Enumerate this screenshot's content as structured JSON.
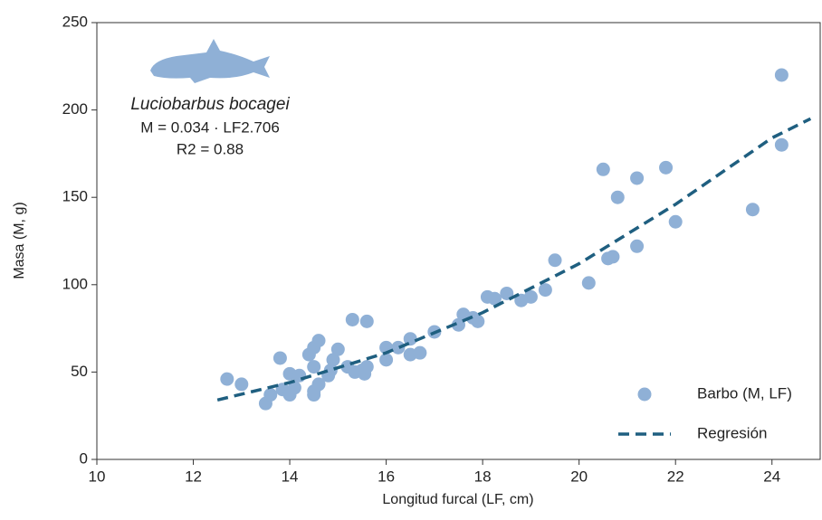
{
  "chart_data": {
    "type": "scatter",
    "x_label": "Longitud furcal (LF, cm)",
    "y_label": "Masa (M, g)",
    "annotations": [
      "Luciobarbus bocagei",
      "M = 0.034 · LF2.706",
      "R2 = 0.88"
    ],
    "xlim": [
      10,
      25
    ],
    "xticks": [
      10,
      12,
      14,
      16,
      18,
      20,
      22,
      24
    ],
    "ylim": [
      0,
      250
    ],
    "yticks": [
      0,
      50,
      100,
      150,
      200,
      250
    ],
    "grid": false,
    "legend": "lower right",
    "series": [
      {
        "name": "Barbo (M, LF)",
        "type": "scatter",
        "color": "#8fb0d6",
        "x": [
          12.7,
          13.0,
          13.5,
          13.6,
          13.8,
          13.85,
          14.0,
          14.0,
          14.1,
          14.2,
          14.4,
          14.5,
          14.5,
          14.5,
          14.5,
          14.6,
          14.6,
          14.8,
          14.85,
          14.9,
          15.0,
          15.2,
          15.3,
          15.35,
          15.5,
          15.55,
          15.6,
          15.6,
          16.0,
          16.0,
          16.25,
          16.5,
          16.5,
          16.7,
          17.0,
          17.5,
          17.6,
          17.8,
          17.9,
          18.1,
          18.25,
          18.5,
          18.8,
          19.0,
          19.3,
          19.5,
          20.2,
          20.5,
          20.6,
          20.7,
          20.8,
          21.2,
          21.2,
          21.8,
          22.0,
          23.6,
          24.2,
          24.2
        ],
        "values": [
          46,
          43,
          32,
          37,
          58,
          40,
          49,
          37,
          41,
          48,
          60,
          64,
          53,
          37,
          39,
          68,
          43,
          48,
          51,
          57,
          63,
          53,
          80,
          50,
          51,
          49,
          79,
          53,
          64,
          57,
          64,
          69,
          60,
          61,
          73,
          77,
          83,
          81,
          79,
          93,
          92,
          95,
          91,
          93,
          97,
          114,
          101,
          166,
          115,
          116,
          150,
          161,
          122,
          167,
          136,
          143,
          220,
          180
        ]
      },
      {
        "name": "Regresión",
        "type": "line",
        "dashed": true,
        "color": "#1f5f80",
        "x": [
          12.5,
          14,
          16,
          18,
          20,
          22,
          24,
          24.8
        ],
        "values": [
          34,
          44,
          61,
          84,
          112,
          146,
          184,
          195
        ]
      }
    ]
  }
}
